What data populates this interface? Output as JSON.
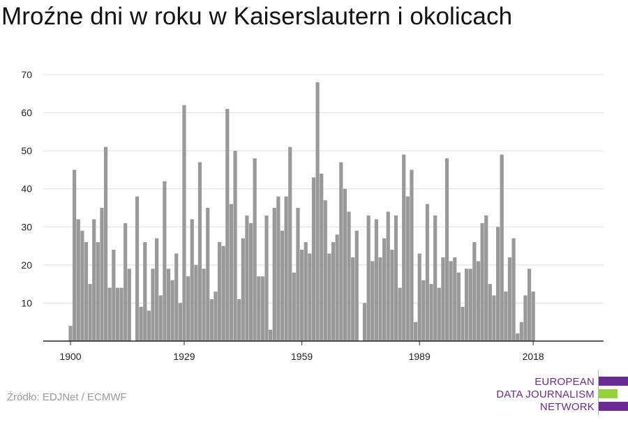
{
  "header": {
    "title": "Mroźne dni w roku w Kaiserslautern i okolicach"
  },
  "footer": {
    "source": "Źródło: EDJNet / ECMWF",
    "logo_lines": [
      "EUROPEAN",
      "DATA JOURNALISM",
      "NETWORK"
    ]
  },
  "colors": {
    "bar": "#999999",
    "grid": "#dddddd",
    "axis": "#222222",
    "logo_purple": "#6b2c91",
    "logo_green": "#95d13a"
  },
  "chart_data": {
    "type": "bar",
    "title": "Mroźne dni w roku w Kaiserslautern i okolicach",
    "xlabel": "",
    "ylabel": "",
    "x_ticks": [
      "1900",
      "1929",
      "1959",
      "1989",
      "2018"
    ],
    "y_ticks": [
      10,
      20,
      30,
      40,
      50,
      60,
      70
    ],
    "ylim": [
      0,
      70
    ],
    "grid": true,
    "years": [
      1900,
      1901,
      1902,
      1903,
      1904,
      1905,
      1906,
      1907,
      1908,
      1909,
      1910,
      1911,
      1912,
      1913,
      1914,
      1915,
      1916,
      1917,
      1918,
      1919,
      1920,
      1921,
      1922,
      1923,
      1924,
      1925,
      1926,
      1927,
      1928,
      1929,
      1930,
      1931,
      1932,
      1933,
      1934,
      1935,
      1936,
      1937,
      1938,
      1939,
      1940,
      1941,
      1942,
      1943,
      1944,
      1945,
      1946,
      1947,
      1948,
      1949,
      1950,
      1951,
      1952,
      1953,
      1954,
      1955,
      1956,
      1957,
      1958,
      1959,
      1960,
      1961,
      1962,
      1963,
      1964,
      1965,
      1966,
      1967,
      1968,
      1969,
      1970,
      1971,
      1972,
      1973,
      1974,
      1975,
      1976,
      1977,
      1978,
      1979,
      1980,
      1981,
      1982,
      1983,
      1984,
      1985,
      1986,
      1987,
      1988,
      1989,
      1990,
      1991,
      1992,
      1993,
      1994,
      1995,
      1996,
      1997,
      1998,
      1999,
      2000,
      2001,
      2002,
      2003,
      2004,
      2005,
      2006,
      2007,
      2008,
      2009,
      2010,
      2011,
      2012,
      2013,
      2014,
      2015,
      2016,
      2017,
      2018
    ],
    "values": [
      4,
      45,
      32,
      29,
      26,
      15,
      32,
      26,
      35,
      51,
      14,
      24,
      14,
      14,
      31,
      19,
      0,
      38,
      9,
      26,
      8,
      19,
      27,
      12,
      42,
      19,
      16,
      23,
      10,
      62,
      17,
      32,
      20,
      47,
      19,
      35,
      11,
      13,
      26,
      25,
      61,
      36,
      50,
      11,
      27,
      33,
      31,
      48,
      17,
      17,
      33,
      3,
      35,
      38,
      29,
      38,
      51,
      18,
      35,
      24,
      26,
      23,
      43,
      68,
      44,
      37,
      23,
      26,
      28,
      47,
      40,
      34,
      22,
      29,
      0,
      10,
      33,
      21,
      32,
      22,
      27,
      34,
      24,
      33,
      14,
      49,
      38,
      45,
      5,
      23,
      16,
      36,
      15,
      33,
      14,
      22,
      48,
      21,
      22,
      18,
      9,
      19,
      19,
      26,
      21,
      31,
      33,
      15,
      12,
      30,
      49,
      13,
      22,
      27,
      2,
      5,
      12,
      19,
      13
    ]
  }
}
